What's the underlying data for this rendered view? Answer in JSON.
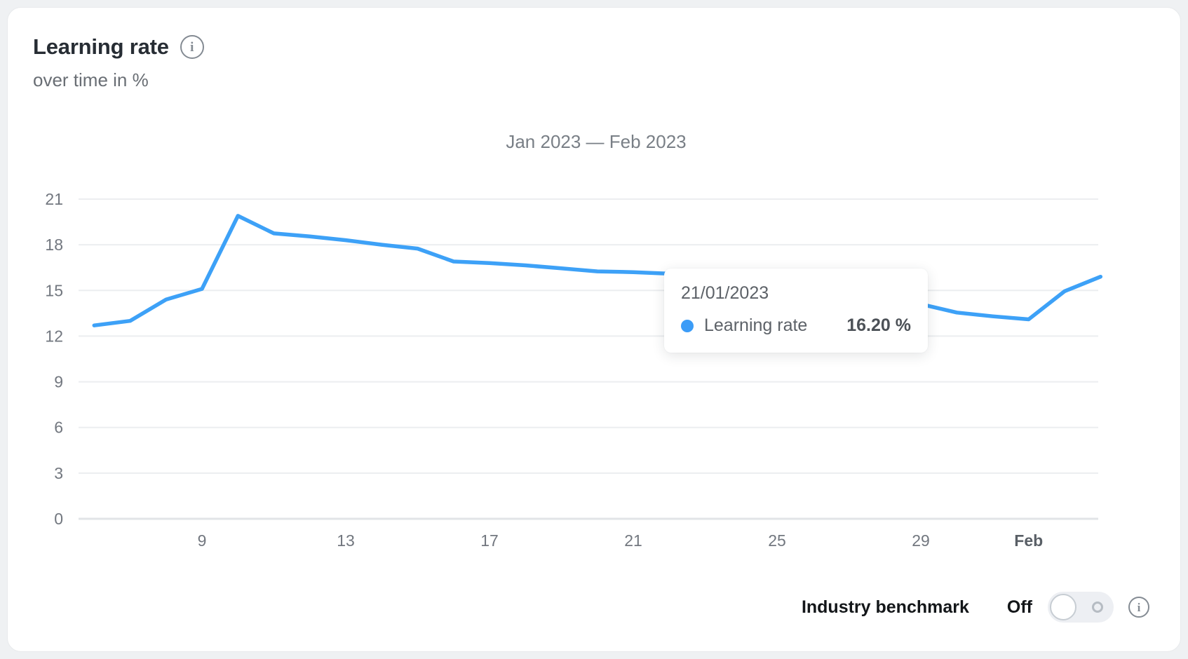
{
  "card": {
    "title": "Learning rate",
    "subtitle": "over time in %",
    "period_title": "Jan 2023 — Feb 2023"
  },
  "tooltip": {
    "date": "21/01/2023",
    "series_label": "Learning rate",
    "value": "16.20 %"
  },
  "benchmark": {
    "label": "Industry benchmark",
    "state": "Off",
    "info_glyph": "i"
  },
  "title_info_glyph": "i",
  "colors": {
    "line": "#3da1f7",
    "tooltip_dot": "#3b9cf7",
    "grid": "#eceef0",
    "axis_line": "#e2e4e7",
    "tick_text": "#72777f",
    "tick_text_bold": "#595f66"
  },
  "chart_data": {
    "type": "line",
    "title": "Jan 2023 — Feb 2023",
    "ylabel": "Learning rate over time in %",
    "ylim": [
      0,
      21
    ],
    "yticks": [
      0,
      3,
      6,
      9,
      12,
      15,
      18,
      21
    ],
    "grid": true,
    "legend_position": "none",
    "x_unit": "day-of-period (Jan 6 2023 = 6, Feb 1 2023 = 32)",
    "x_ticks": [
      {
        "label": "9",
        "day": 9,
        "bold": false
      },
      {
        "label": "13",
        "day": 13,
        "bold": false
      },
      {
        "label": "17",
        "day": 17,
        "bold": false
      },
      {
        "label": "21",
        "day": 21,
        "bold": false
      },
      {
        "label": "25",
        "day": 25,
        "bold": false
      },
      {
        "label": "29",
        "day": 29,
        "bold": false
      },
      {
        "label": "Feb",
        "day": 32,
        "bold": true
      }
    ],
    "series": [
      {
        "name": "Learning rate",
        "x": [
          6,
          7,
          8,
          9,
          10,
          11,
          12,
          13,
          14,
          15,
          16,
          17,
          18,
          19,
          20,
          21,
          22,
          23,
          24,
          25,
          26,
          27,
          28,
          29,
          30,
          31,
          32,
          33,
          34
        ],
        "values": [
          12.7,
          13.0,
          14.4,
          15.1,
          19.9,
          18.75,
          18.55,
          18.3,
          18.0,
          17.75,
          16.9,
          16.8,
          16.65,
          16.45,
          16.25,
          16.2,
          16.1,
          15.8,
          15.5,
          15.25,
          15.0,
          14.7,
          14.4,
          14.1,
          13.55,
          13.3,
          13.1,
          14.95,
          15.9
        ]
      }
    ],
    "highlighted_point": {
      "date": "21/01/2023",
      "day": 21,
      "value": 16.2
    }
  }
}
